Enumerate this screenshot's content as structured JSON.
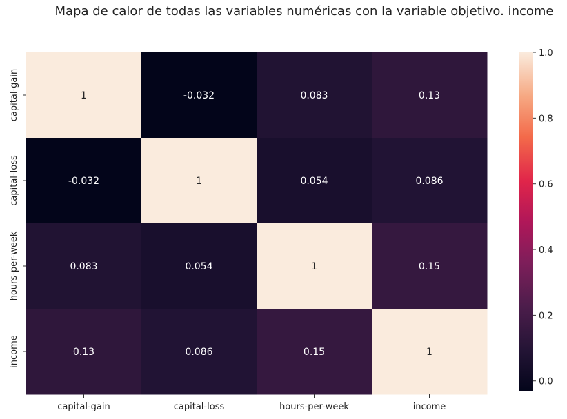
{
  "chart_data": {
    "type": "heatmap",
    "title": "Mapa de calor de todas las variables numéricas con la variable objetivo. income",
    "x_labels": [
      "capital-gain",
      "capital-loss",
      "hours-per-week",
      "income"
    ],
    "y_labels": [
      "capital-gain",
      "capital-loss",
      "hours-per-week",
      "income"
    ],
    "values": [
      [
        1,
        -0.032,
        0.083,
        0.13
      ],
      [
        -0.032,
        1,
        0.054,
        0.086
      ],
      [
        0.083,
        0.054,
        1,
        0.15
      ],
      [
        0.13,
        0.086,
        0.15,
        1
      ]
    ],
    "annotations": [
      [
        "1",
        "-0.032",
        "0.083",
        "0.13"
      ],
      [
        "-0.032",
        "1",
        "0.054",
        "0.086"
      ],
      [
        "0.083",
        "0.054",
        "1",
        "0.15"
      ],
      [
        "0.13",
        "0.086",
        "0.15",
        "1"
      ]
    ],
    "colorbar": {
      "range": [
        -0.032,
        1
      ],
      "ticks": [
        0.0,
        0.2,
        0.4,
        0.6,
        0.8,
        1.0
      ],
      "tick_labels": [
        "0.0",
        "0.2",
        "0.4",
        "0.6",
        "0.8",
        "1.0"
      ],
      "colormap": "rocket"
    }
  }
}
